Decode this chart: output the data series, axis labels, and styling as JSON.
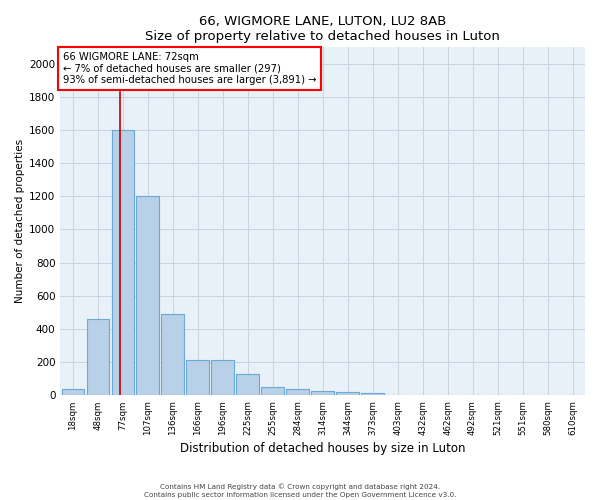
{
  "title": "66, WIGMORE LANE, LUTON, LU2 8AB",
  "subtitle": "Size of property relative to detached houses in Luton",
  "xlabel": "Distribution of detached houses by size in Luton",
  "ylabel": "Number of detached properties",
  "footer_line1": "Contains HM Land Registry data © Crown copyright and database right 2024.",
  "footer_line2": "Contains public sector information licensed under the Open Government Licence v3.0.",
  "categories": [
    "18sqm",
    "48sqm",
    "77sqm",
    "107sqm",
    "136sqm",
    "166sqm",
    "196sqm",
    "225sqm",
    "255sqm",
    "284sqm",
    "314sqm",
    "344sqm",
    "373sqm",
    "403sqm",
    "432sqm",
    "462sqm",
    "492sqm",
    "521sqm",
    "551sqm",
    "580sqm",
    "610sqm"
  ],
  "values": [
    40,
    460,
    1600,
    1200,
    490,
    210,
    210,
    130,
    50,
    40,
    25,
    20,
    15,
    0,
    0,
    0,
    0,
    0,
    0,
    0,
    0
  ],
  "bar_color": "#b8d0e8",
  "bar_edge_color": "#6aaad4",
  "annotation_line1": "66 WIGMORE LANE: 72sqm",
  "annotation_line2": "← 7% of detached houses are smaller (297)",
  "annotation_line3": "93% of semi-detached houses are larger (3,891) →",
  "vline_color": "#cc0000",
  "ylim": [
    0,
    2100
  ],
  "yticks": [
    0,
    200,
    400,
    600,
    800,
    1000,
    1200,
    1400,
    1600,
    1800,
    2000
  ],
  "background_color": "#ffffff",
  "axes_bg_color": "#e8f0f8",
  "grid_color": "#c8d4e0"
}
